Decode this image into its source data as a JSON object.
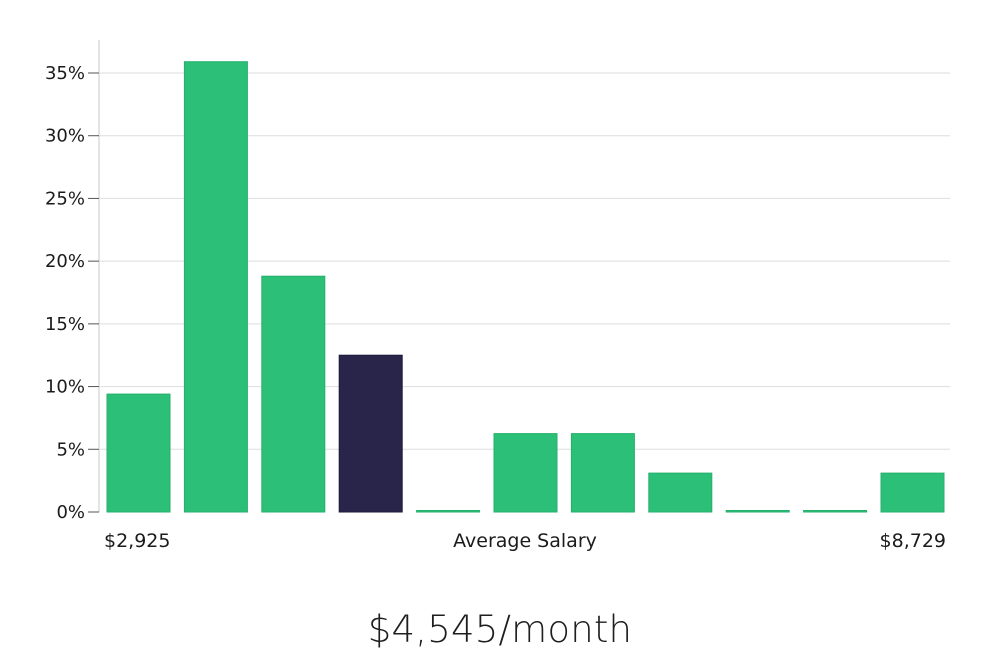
{
  "chart_data": {
    "type": "bar",
    "values": [
      9.4,
      35.9,
      18.8,
      12.5,
      0,
      6.25,
      6.25,
      3.1,
      0,
      0,
      3.1
    ],
    "highlight_index": 3,
    "ylim": [
      0,
      35
    ],
    "y_ticks": [
      "0%",
      "5%",
      "10%",
      "15%",
      "20%",
      "25%",
      "30%",
      "35%"
    ],
    "y_tick_values": [
      0,
      5,
      10,
      15,
      20,
      25,
      30,
      35
    ],
    "x_min_label": "$2,925",
    "x_center_label": "Average Salary",
    "x_max_label": "$8,729",
    "grid": true
  },
  "summary": {
    "value": "$4,545/month"
  },
  "colors": {
    "bar": "#2bbf77",
    "bar_highlight": "#29254a",
    "grid": "#dedede",
    "axis": "#c8c8c8"
  }
}
